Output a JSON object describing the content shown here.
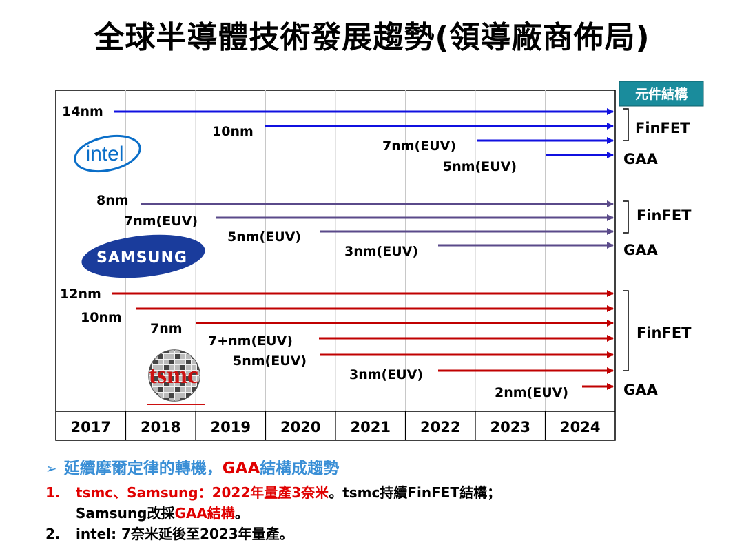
{
  "title": "全球半導體技術發展趨勢(領導廠商佈局)",
  "header_badge": "元件結構",
  "years": [
    "2017",
    "2018",
    "2019",
    "2020",
    "2021",
    "2022",
    "2023",
    "2024"
  ],
  "structures": {
    "finfet": "FinFET",
    "gaa": "GAA"
  },
  "companies": {
    "intel": {
      "logo_text": "intel",
      "color": "#1010e0",
      "nodes": [
        "14nm",
        "10nm",
        "7nm(EUV)",
        "5nm(EUV)"
      ]
    },
    "samsung": {
      "logo_text": "SAMSUNG",
      "color": "#5a4a8a",
      "nodes": [
        "8nm",
        "7nm(EUV)",
        "5nm(EUV)",
        "3nm(EUV)"
      ]
    },
    "tsmc": {
      "logo_text": "tsmc",
      "color": "#c00000",
      "nodes": [
        "12nm",
        "10nm",
        "7nm",
        "7+nm(EUV)",
        "5nm(EUV)",
        "3nm(EUV)",
        "2nm(EUV)"
      ]
    }
  },
  "bullets": {
    "heading_pre": "延續摩爾定律的轉機，",
    "heading_red": "GAA",
    "heading_post": "結構成趨勢",
    "item1_num": "1.",
    "item1_red": "tsmc、Samsung：2022年量產3奈米",
    "item1_post": "。tsmc持續FinFET結構；",
    "item1_line2_pre": "Samsung改採",
    "item1_line2_red": "GAA結構",
    "item1_line2_post": "。",
    "item2_num": "2.",
    "item2_text": "intel: 7奈米延後至2023年量產。"
  }
}
